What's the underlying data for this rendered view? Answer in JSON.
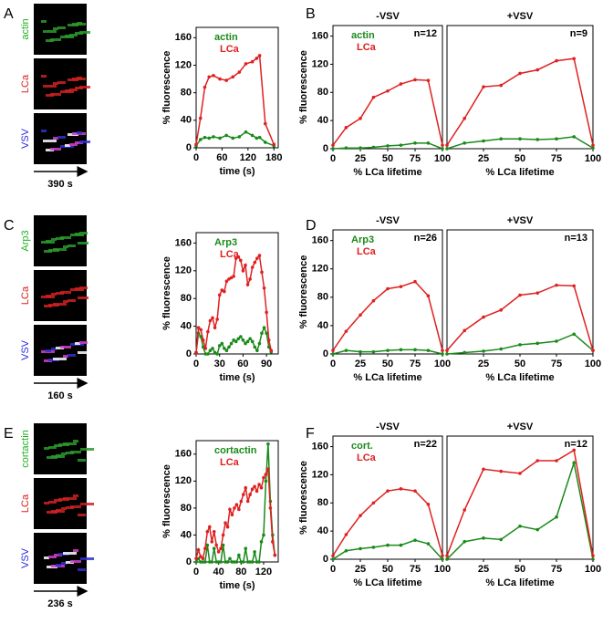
{
  "figure": {
    "panels": [
      {
        "letter": "A",
        "labels": [
          {
            "text": "actin",
            "color": "#22b022"
          },
          {
            "text": "LCa",
            "color": "#e02020"
          },
          {
            "text": "VSV",
            "color": "#2a2ae0"
          }
        ],
        "duration": "390 s"
      },
      {
        "letter": "C",
        "labels": [
          {
            "text": "Arp3",
            "color": "#22b022"
          },
          {
            "text": "LCa",
            "color": "#e02020"
          },
          {
            "text": "VSV",
            "color": "#2a2ae0"
          }
        ],
        "duration": "160 s"
      },
      {
        "letter": "E",
        "labels": [
          {
            "text": "cortactin",
            "color": "#22b022"
          },
          {
            "text": "LCa",
            "color": "#e02020"
          },
          {
            "text": "VSV",
            "color": "#2a2ae0"
          }
        ],
        "duration": "236 s"
      }
    ],
    "letters": [
      "B",
      "D",
      "F"
    ]
  },
  "chart_data": [
    {
      "type": "line",
      "ylabel": "% fluorescence",
      "xlabel": "time (s)",
      "xlim": [
        0,
        190
      ],
      "ylim": [
        0,
        175
      ],
      "xticks": [
        0,
        60,
        120,
        180
      ],
      "yticks": [
        0,
        40,
        80,
        120,
        160
      ],
      "x": [
        0,
        10,
        20,
        30,
        40,
        55,
        70,
        85,
        100,
        115,
        130,
        140,
        147,
        160,
        180
      ],
      "series": [
        {
          "name": "actin",
          "color": "#1a8a1a",
          "values": [
            3,
            12,
            15,
            14,
            16,
            14,
            18,
            14,
            16,
            23,
            18,
            14,
            15,
            8,
            3
          ]
        },
        {
          "name": "LCa",
          "color": "#e02020",
          "values": [
            5,
            43,
            88,
            103,
            105,
            100,
            98,
            103,
            110,
            122,
            125,
            130,
            134,
            35,
            5
          ]
        }
      ]
    },
    {
      "type": "line",
      "title": "-VSV",
      "annotation": "n=12",
      "ylabel": "% fluorescence",
      "xlabel": "% LCa lifetime",
      "xlim": [
        0,
        100
      ],
      "ylim": [
        0,
        175
      ],
      "xticks": [
        0,
        25,
        50,
        75,
        100
      ],
      "yticks": [
        0,
        40,
        80,
        120,
        160
      ],
      "x": [
        0,
        12,
        25,
        37,
        50,
        62,
        75,
        87,
        100
      ],
      "series": [
        {
          "name": "actin",
          "color": "#1a8a1a",
          "values": [
            0,
            1,
            1,
            2,
            4,
            5,
            8,
            8,
            0
          ]
        },
        {
          "name": "LCa",
          "color": "#e02020",
          "values": [
            5,
            30,
            43,
            73,
            82,
            92,
            98,
            97,
            5
          ]
        }
      ]
    },
    {
      "type": "line",
      "title": "+VSV",
      "annotation": "n=9",
      "xlabel": "% LCa lifetime",
      "xlim": [
        0,
        100
      ],
      "ylim": [
        0,
        175
      ],
      "xticks": [
        25,
        50,
        75,
        100
      ],
      "x": [
        0,
        12,
        25,
        37,
        50,
        62,
        75,
        87,
        100
      ],
      "series": [
        {
          "color": "#1a8a1a",
          "values": [
            0,
            8,
            11,
            14,
            14,
            13,
            14,
            17,
            1
          ]
        },
        {
          "color": "#e02020",
          "values": [
            5,
            43,
            88,
            90,
            107,
            112,
            125,
            128,
            5
          ]
        }
      ]
    },
    {
      "type": "line",
      "ylabel": "% fluorescence",
      "xlabel": "time (s)",
      "xlim": [
        0,
        105
      ],
      "ylim": [
        0,
        175
      ],
      "xticks": [
        0,
        30,
        60,
        90
      ],
      "yticks": [
        0,
        40,
        80,
        120,
        160
      ],
      "x": [
        0,
        3,
        6,
        9,
        12,
        15,
        18,
        21,
        24,
        27,
        30,
        33,
        36,
        39,
        42,
        45,
        48,
        51,
        54,
        57,
        60,
        63,
        66,
        69,
        72,
        75,
        78,
        81,
        84,
        87,
        90,
        93,
        96
      ],
      "series": [
        {
          "name": "Arp3",
          "color": "#1a8a1a",
          "values": [
            2,
            30,
            25,
            10,
            0,
            0,
            5,
            8,
            2,
            0,
            12,
            15,
            8,
            5,
            10,
            15,
            20,
            18,
            22,
            25,
            20,
            15,
            18,
            22,
            18,
            10,
            5,
            15,
            30,
            38,
            30,
            10,
            3
          ]
        },
        {
          "name": "LCa",
          "color": "#e02020",
          "values": [
            2,
            38,
            35,
            20,
            8,
            32,
            48,
            52,
            38,
            50,
            85,
            92,
            90,
            105,
            108,
            110,
            112,
            138,
            140,
            135,
            120,
            128,
            100,
            108,
            125,
            132,
            138,
            142,
            118,
            95,
            60,
            20,
            5
          ]
        }
      ]
    },
    {
      "type": "line",
      "title": "-VSV",
      "annotation": "n=26",
      "ylabel": "% fluorescence",
      "xlabel": "% LCa lifetime",
      "xlim": [
        0,
        100
      ],
      "ylim": [
        0,
        175
      ],
      "xticks": [
        0,
        25,
        50,
        75,
        100
      ],
      "yticks": [
        0,
        40,
        80,
        120,
        160
      ],
      "x": [
        0,
        12,
        25,
        37,
        50,
        62,
        75,
        87,
        100
      ],
      "series": [
        {
          "name": "Arp3",
          "color": "#1a8a1a",
          "values": [
            0,
            5,
            3,
            3,
            5,
            6,
            6,
            5,
            0
          ]
        },
        {
          "name": "LCa",
          "color": "#e02020",
          "values": [
            5,
            32,
            55,
            75,
            92,
            95,
            102,
            82,
            5
          ]
        }
      ]
    },
    {
      "type": "line",
      "title": "+VSV",
      "annotation": "n=13",
      "xlabel": "% LCa lifetime",
      "xlim": [
        0,
        100
      ],
      "ylim": [
        0,
        175
      ],
      "xticks": [
        25,
        50,
        75,
        100
      ],
      "x": [
        0,
        12,
        25,
        37,
        50,
        62,
        75,
        87,
        100
      ],
      "series": [
        {
          "color": "#1a8a1a",
          "values": [
            0,
            2,
            4,
            7,
            13,
            15,
            18,
            28,
            5
          ]
        },
        {
          "color": "#e02020",
          "values": [
            5,
            33,
            52,
            62,
            83,
            86,
            97,
            96,
            5
          ]
        }
      ]
    },
    {
      "type": "line",
      "ylabel": "% fluorescence",
      "xlabel": "time (s)",
      "xlim": [
        0,
        146
      ],
      "ylim": [
        0,
        180
      ],
      "xticks": [
        0,
        40,
        80,
        120
      ],
      "yticks": [
        0,
        40,
        80,
        120,
        160
      ],
      "x": [
        0,
        4,
        8,
        12,
        16,
        20,
        24,
        28,
        32,
        36,
        40,
        44,
        48,
        52,
        56,
        60,
        64,
        68,
        72,
        76,
        80,
        84,
        88,
        92,
        96,
        100,
        104,
        108,
        112,
        116,
        120,
        124,
        128,
        132,
        136,
        140
      ],
      "series": [
        {
          "name": "cortactin",
          "color": "#1a8a1a",
          "values": [
            0,
            5,
            0,
            0,
            0,
            25,
            0,
            0,
            20,
            0,
            0,
            0,
            25,
            0,
            0,
            5,
            0,
            0,
            0,
            10,
            0,
            0,
            20,
            0,
            0,
            0,
            15,
            0,
            0,
            30,
            40,
            120,
            175,
            90,
            40,
            10
          ]
        },
        {
          "name": "LCa",
          "color": "#e02020",
          "values": [
            5,
            18,
            8,
            5,
            20,
            45,
            52,
            30,
            45,
            25,
            15,
            20,
            40,
            58,
            52,
            78,
            70,
            80,
            85,
            78,
            90,
            100,
            110,
            90,
            100,
            108,
            112,
            105,
            115,
            110,
            125,
            130,
            138,
            80,
            30,
            10
          ]
        }
      ]
    },
    {
      "type": "line",
      "title": "-VSV",
      "annotation": "n=22",
      "ylabel": "% fluorescence",
      "xlabel": "% LCa lifetime",
      "xlim": [
        0,
        100
      ],
      "ylim": [
        0,
        175
      ],
      "xticks": [
        0,
        25,
        50,
        75,
        100
      ],
      "yticks": [
        0,
        40,
        80,
        120,
        160
      ],
      "x": [
        0,
        12,
        25,
        37,
        50,
        62,
        75,
        87,
        100
      ],
      "series": [
        {
          "name": "cort.",
          "color": "#1a8a1a",
          "values": [
            0,
            12,
            15,
            17,
            20,
            20,
            27,
            22,
            0
          ]
        },
        {
          "name": "LCa",
          "color": "#e02020",
          "values": [
            5,
            35,
            62,
            80,
            97,
            100,
            97,
            78,
            5
          ]
        }
      ]
    },
    {
      "type": "line",
      "title": "+VSV",
      "annotation": "n=12",
      "xlabel": "% LCa lifetime",
      "xlim": [
        0,
        100
      ],
      "ylim": [
        0,
        175
      ],
      "xticks": [
        25,
        50,
        75,
        100
      ],
      "x": [
        0,
        12,
        25,
        37,
        50,
        62,
        75,
        87,
        100
      ],
      "series": [
        {
          "color": "#1a8a1a",
          "values": [
            0,
            25,
            30,
            28,
            47,
            42,
            60,
            137,
            0
          ]
        },
        {
          "color": "#e02020",
          "values": [
            5,
            70,
            128,
            125,
            122,
            140,
            140,
            155,
            5
          ]
        }
      ]
    }
  ]
}
